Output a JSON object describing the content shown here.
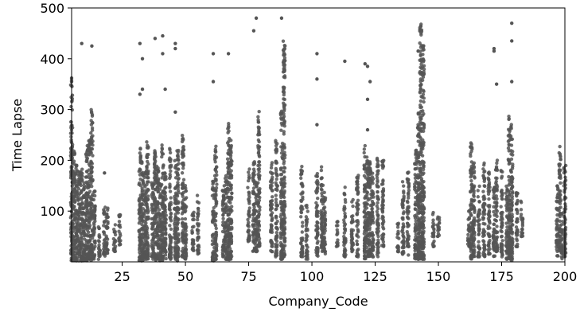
{
  "chart_data": {
    "type": "scatter",
    "title": "",
    "xlabel": "Company_Code",
    "ylabel": "Time Lapse",
    "xlim": [
      5,
      200
    ],
    "ylim": [
      0,
      500
    ],
    "xticks": [
      25,
      50,
      75,
      100,
      125,
      150,
      175,
      200
    ],
    "yticks": [
      100,
      200,
      300,
      400,
      500
    ],
    "grid": false,
    "legend": "none",
    "point_color": "#555555",
    "note": "Dense vertical strips of points per company code; listed values summarize each strip's spread.",
    "columns": [
      {
        "x": 5,
        "y_min": 2,
        "y_max": 360,
        "outliers": [
          355,
          362
        ]
      },
      {
        "x": 6,
        "y_min": 2,
        "y_max": 220
      },
      {
        "x": 7,
        "y_min": 2,
        "y_max": 200
      },
      {
        "x": 8,
        "y_min": 2,
        "y_max": 180
      },
      {
        "x": 9,
        "y_min": 2,
        "y_max": 190,
        "outliers": [
          430
        ]
      },
      {
        "x": 10,
        "y_min": 2,
        "y_max": 160
      },
      {
        "x": 11,
        "y_min": 2,
        "y_max": 230
      },
      {
        "x": 12,
        "y_min": 5,
        "y_max": 250
      },
      {
        "x": 13,
        "y_min": 2,
        "y_max": 300,
        "outliers": [
          425
        ]
      },
      {
        "x": 14,
        "y_min": 5,
        "y_max": 140
      },
      {
        "x": 16,
        "y_min": 5,
        "y_max": 70
      },
      {
        "x": 18,
        "y_min": 10,
        "y_max": 110,
        "outliers": [
          175
        ]
      },
      {
        "x": 19,
        "y_min": 15,
        "y_max": 110
      },
      {
        "x": 22,
        "y_min": 20,
        "y_max": 80
      },
      {
        "x": 24,
        "y_min": 30,
        "y_max": 95
      },
      {
        "x": 32,
        "y_min": 2,
        "y_max": 230,
        "outliers": [
          330,
          430
        ]
      },
      {
        "x": 33,
        "y_min": 2,
        "y_max": 200,
        "outliers": [
          340,
          400
        ]
      },
      {
        "x": 34,
        "y_min": 5,
        "y_max": 180
      },
      {
        "x": 35,
        "y_min": 5,
        "y_max": 240
      },
      {
        "x": 37,
        "y_min": 5,
        "y_max": 160
      },
      {
        "x": 38,
        "y_min": 2,
        "y_max": 220,
        "outliers": [
          440
        ]
      },
      {
        "x": 39,
        "y_min": 5,
        "y_max": 190
      },
      {
        "x": 40,
        "y_min": 2,
        "y_max": 160
      },
      {
        "x": 41,
        "y_min": 2,
        "y_max": 230,
        "outliers": [
          410,
          445
        ]
      },
      {
        "x": 42,
        "y_min": 5,
        "y_max": 180,
        "outliers": [
          340
        ]
      },
      {
        "x": 44,
        "y_min": 5,
        "y_max": 230
      },
      {
        "x": 46,
        "y_min": 5,
        "y_max": 200,
        "outliers": [
          295,
          420,
          430
        ]
      },
      {
        "x": 47,
        "y_min": 2,
        "y_max": 220
      },
      {
        "x": 49,
        "y_min": 5,
        "y_max": 250
      },
      {
        "x": 50,
        "y_min": 5,
        "y_max": 160
      },
      {
        "x": 53,
        "y_min": 20,
        "y_max": 100
      },
      {
        "x": 55,
        "y_min": 15,
        "y_max": 135
      },
      {
        "x": 61,
        "y_min": 2,
        "y_max": 160,
        "outliers": [
          355,
          410
        ]
      },
      {
        "x": 62,
        "y_min": 5,
        "y_max": 230
      },
      {
        "x": 65,
        "y_min": 10,
        "y_max": 150
      },
      {
        "x": 66,
        "y_min": 5,
        "y_max": 170
      },
      {
        "x": 67,
        "y_min": 2,
        "y_max": 280,
        "outliers": [
          410
        ]
      },
      {
        "x": 68,
        "y_min": 5,
        "y_max": 240
      },
      {
        "x": 75,
        "y_min": 40,
        "y_max": 190
      },
      {
        "x": 77,
        "y_min": 20,
        "y_max": 200,
        "outliers": [
          455
        ]
      },
      {
        "x": 78,
        "y_min": 20,
        "y_max": 160,
        "outliers": [
          480
        ]
      },
      {
        "x": 79,
        "y_min": 30,
        "y_max": 300
      },
      {
        "x": 84,
        "y_min": 20,
        "y_max": 200
      },
      {
        "x": 86,
        "y_min": 10,
        "y_max": 240
      },
      {
        "x": 88,
        "y_min": 5,
        "y_max": 300,
        "outliers": [
          480
        ]
      },
      {
        "x": 89,
        "y_min": 10,
        "y_max": 440
      },
      {
        "x": 96,
        "y_min": 10,
        "y_max": 190
      },
      {
        "x": 98,
        "y_min": 5,
        "y_max": 120
      },
      {
        "x": 102,
        "y_min": 10,
        "y_max": 190,
        "outliers": [
          270,
          360,
          410
        ]
      },
      {
        "x": 104,
        "y_min": 20,
        "y_max": 190
      },
      {
        "x": 105,
        "y_min": 15,
        "y_max": 140
      },
      {
        "x": 110,
        "y_min": 30,
        "y_max": 80
      },
      {
        "x": 113,
        "y_min": 10,
        "y_max": 150,
        "outliers": [
          395
        ]
      },
      {
        "x": 116,
        "y_min": 20,
        "y_max": 130
      },
      {
        "x": 118,
        "y_min": 10,
        "y_max": 180
      },
      {
        "x": 121,
        "y_min": 5,
        "y_max": 230,
        "outliers": [
          390
        ]
      },
      {
        "x": 122,
        "y_min": 10,
        "y_max": 210,
        "outliers": [
          260,
          320,
          385
        ]
      },
      {
        "x": 123,
        "y_min": 10,
        "y_max": 200,
        "outliers": [
          355
        ]
      },
      {
        "x": 124,
        "y_min": 10,
        "y_max": 180
      },
      {
        "x": 126,
        "y_min": 10,
        "y_max": 210
      },
      {
        "x": 128,
        "y_min": 30,
        "y_max": 200
      },
      {
        "x": 134,
        "y_min": 20,
        "y_max": 80
      },
      {
        "x": 136,
        "y_min": 15,
        "y_max": 160
      },
      {
        "x": 138,
        "y_min": 10,
        "y_max": 180
      },
      {
        "x": 141,
        "y_min": 5,
        "y_max": 220
      },
      {
        "x": 142,
        "y_min": 5,
        "y_max": 300,
        "outliers": [
          415
        ]
      },
      {
        "x": 143,
        "y_min": 5,
        "y_max": 470
      },
      {
        "x": 144,
        "y_min": 5,
        "y_max": 430
      },
      {
        "x": 148,
        "y_min": 30,
        "y_max": 100
      },
      {
        "x": 150,
        "y_min": 50,
        "y_max": 90
      },
      {
        "x": 162,
        "y_min": 30,
        "y_max": 110
      },
      {
        "x": 163,
        "y_min": 5,
        "y_max": 235
      },
      {
        "x": 164,
        "y_min": 10,
        "y_max": 200
      },
      {
        "x": 166,
        "y_min": 10,
        "y_max": 150
      },
      {
        "x": 168,
        "y_min": 10,
        "y_max": 200
      },
      {
        "x": 170,
        "y_min": 15,
        "y_max": 180
      },
      {
        "x": 172,
        "y_min": 10,
        "y_max": 150,
        "outliers": [
          415,
          420
        ]
      },
      {
        "x": 173,
        "y_min": 20,
        "y_max": 200,
        "outliers": [
          350
        ]
      },
      {
        "x": 175,
        "y_min": 10,
        "y_max": 180
      },
      {
        "x": 177,
        "y_min": 5,
        "y_max": 150
      },
      {
        "x": 178,
        "y_min": 5,
        "y_max": 290
      },
      {
        "x": 179,
        "y_min": 2,
        "y_max": 280,
        "outliers": [
          355,
          435,
          470
        ]
      },
      {
        "x": 181,
        "y_min": 30,
        "y_max": 140
      },
      {
        "x": 183,
        "y_min": 50,
        "y_max": 120
      },
      {
        "x": 197,
        "y_min": 10,
        "y_max": 150
      },
      {
        "x": 198,
        "y_min": 20,
        "y_max": 230
      },
      {
        "x": 199,
        "y_min": 5,
        "y_max": 100
      },
      {
        "x": 200,
        "y_min": 10,
        "y_max": 190
      }
    ]
  }
}
